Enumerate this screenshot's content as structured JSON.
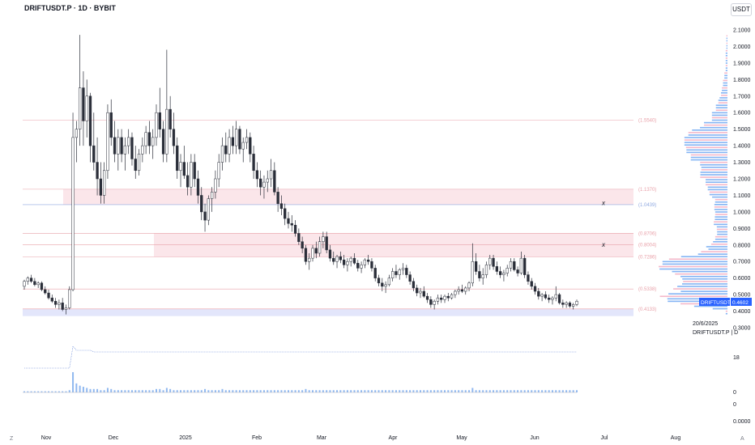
{
  "header": {
    "title": "DRIFTUSDT.P · 1D · BYBIT",
    "currency_label": "USDT"
  },
  "colors": {
    "candle": "#2a2e39",
    "level_red": "#e8a0a8",
    "level_blue": "#8fa8e0",
    "zone_red": "#fbe6ea",
    "zone_blue": "#e3e6fb",
    "profile": "#5b9bf0",
    "price_tag": "#2962ff"
  },
  "chart_data": {
    "type": "candlestick",
    "symbol": "DRIFTUSDT.P",
    "timeframe": "1D",
    "exchange": "BYBIT",
    "y_ticks": [
      "2.1000",
      "2.0000",
      "1.9000",
      "1.8000",
      "1.7000",
      "1.6000",
      "1.5000",
      "1.4000",
      "1.3000",
      "1.2000",
      "1.1000",
      "1.0000",
      "0.9000",
      "0.8000",
      "0.7000",
      "0.6000",
      "0.5000",
      "0.4000",
      "0.3000"
    ],
    "ylim": [
      0.3,
      2.1
    ],
    "x_ticks": [
      "Nov",
      "Dec",
      "2025",
      "Feb",
      "Mar",
      "Apr",
      "May",
      "Jun",
      "Jul",
      "Aug"
    ],
    "levels": [
      {
        "label": "(1.5540)",
        "value": 1.554,
        "color": "red"
      },
      {
        "label": "(1.1370)",
        "value": 1.137,
        "color": "red"
      },
      {
        "label": "(1.0439)",
        "value": 1.0439,
        "color": "blue"
      },
      {
        "label": "(0.8706)",
        "value": 0.8706,
        "color": "red"
      },
      {
        "label": "(0.8004)",
        "value": 0.8004,
        "color": "red"
      },
      {
        "label": "(0.7286)",
        "value": 0.7286,
        "color": "red"
      },
      {
        "label": "(0.5338)",
        "value": 0.5338,
        "color": "red"
      },
      {
        "label": "(0.4133)",
        "value": 0.4133,
        "color": "red"
      }
    ],
    "zones": [
      {
        "from": 1.044,
        "to": 1.137,
        "color": "red"
      },
      {
        "from": 0.7286,
        "to": 0.8706,
        "color": "red"
      },
      {
        "from": 0.37,
        "to": 0.4133,
        "color": "blue"
      }
    ],
    "markers": [
      {
        "text": "x",
        "value": 1.05
      },
      {
        "text": "x",
        "value": 0.8
      }
    ],
    "last_price": {
      "symbol": "DRIFTUSDT.P",
      "value": "0.4602"
    },
    "info": {
      "date": "20/6/2025",
      "line": "DRIFTUSDT.P | D"
    },
    "indicator_labels": [
      "18",
      "0",
      "0",
      "0.0000"
    ],
    "candles": [
      [
        0.55,
        0.59,
        0.53,
        0.58
      ],
      [
        0.58,
        0.61,
        0.56,
        0.6
      ],
      [
        0.6,
        0.62,
        0.57,
        0.58
      ],
      [
        0.58,
        0.6,
        0.55,
        0.56
      ],
      [
        0.56,
        0.58,
        0.54,
        0.57
      ],
      [
        0.57,
        0.58,
        0.52,
        0.53
      ],
      [
        0.53,
        0.55,
        0.5,
        0.51
      ],
      [
        0.51,
        0.53,
        0.47,
        0.48
      ],
      [
        0.48,
        0.5,
        0.45,
        0.46
      ],
      [
        0.46,
        0.48,
        0.42,
        0.44
      ],
      [
        0.44,
        0.47,
        0.41,
        0.45
      ],
      [
        0.45,
        0.48,
        0.4,
        0.41
      ],
      [
        0.41,
        0.44,
        0.38,
        0.42
      ],
      [
        0.42,
        0.55,
        0.41,
        0.53
      ],
      [
        0.53,
        1.6,
        0.52,
        1.45
      ],
      [
        1.45,
        1.55,
        1.3,
        1.5
      ],
      [
        1.5,
        2.07,
        1.4,
        1.75
      ],
      [
        1.75,
        1.85,
        1.4,
        1.55
      ],
      [
        1.55,
        1.8,
        1.45,
        1.7
      ],
      [
        1.7,
        1.72,
        1.3,
        1.4
      ],
      [
        1.4,
        1.6,
        1.25,
        1.3
      ],
      [
        1.3,
        1.45,
        1.1,
        1.2
      ],
      [
        1.2,
        1.3,
        1.05,
        1.1
      ],
      [
        1.1,
        1.3,
        1.05,
        1.25
      ],
      [
        1.25,
        1.65,
        1.2,
        1.6
      ],
      [
        1.6,
        1.68,
        1.4,
        1.45
      ],
      [
        1.45,
        1.55,
        1.3,
        1.35
      ],
      [
        1.35,
        1.5,
        1.25,
        1.45
      ],
      [
        1.45,
        1.5,
        1.3,
        1.35
      ],
      [
        1.35,
        1.45,
        1.25,
        1.4
      ],
      [
        1.4,
        1.5,
        1.35,
        1.45
      ],
      [
        1.45,
        1.48,
        1.28,
        1.32
      ],
      [
        1.32,
        1.4,
        1.2,
        1.25
      ],
      [
        1.25,
        1.38,
        1.22,
        1.35
      ],
      [
        1.35,
        1.45,
        1.3,
        1.4
      ],
      [
        1.4,
        1.52,
        1.35,
        1.48
      ],
      [
        1.48,
        1.55,
        1.35,
        1.4
      ],
      [
        1.4,
        1.5,
        1.32,
        1.45
      ],
      [
        1.45,
        1.65,
        1.4,
        1.6
      ],
      [
        1.6,
        1.75,
        1.45,
        1.5
      ],
      [
        1.5,
        1.55,
        1.3,
        1.35
      ],
      [
        1.35,
        1.98,
        1.3,
        1.62
      ],
      [
        1.62,
        1.7,
        1.45,
        1.5
      ],
      [
        1.5,
        1.6,
        1.35,
        1.4
      ],
      [
        1.4,
        1.45,
        1.2,
        1.25
      ],
      [
        1.25,
        1.35,
        1.15,
        1.3
      ],
      [
        1.3,
        1.4,
        1.2,
        1.22
      ],
      [
        1.22,
        1.3,
        1.1,
        1.15
      ],
      [
        1.15,
        1.35,
        1.1,
        1.3
      ],
      [
        1.3,
        1.35,
        1.15,
        1.2
      ],
      [
        1.2,
        1.25,
        1.05,
        1.1
      ],
      [
        1.1,
        1.15,
        0.95,
        1.0
      ],
      [
        1.0,
        1.05,
        0.88,
        0.95
      ],
      [
        0.95,
        1.1,
        0.92,
        1.08
      ],
      [
        1.08,
        1.15,
        1.0,
        1.12
      ],
      [
        1.12,
        1.25,
        1.08,
        1.2
      ],
      [
        1.2,
        1.35,
        1.15,
        1.3
      ],
      [
        1.3,
        1.45,
        1.25,
        1.4
      ],
      [
        1.4,
        1.48,
        1.3,
        1.35
      ],
      [
        1.35,
        1.5,
        1.3,
        1.45
      ],
      [
        1.45,
        1.52,
        1.35,
        1.4
      ],
      [
        1.4,
        1.55,
        1.35,
        1.5
      ],
      [
        1.5,
        1.52,
        1.35,
        1.38
      ],
      [
        1.38,
        1.45,
        1.3,
        1.42
      ],
      [
        1.42,
        1.5,
        1.38,
        1.45
      ],
      [
        1.45,
        1.48,
        1.3,
        1.35
      ],
      [
        1.35,
        1.4,
        1.2,
        1.25
      ],
      [
        1.25,
        1.3,
        1.15,
        1.2
      ],
      [
        1.2,
        1.25,
        1.1,
        1.15
      ],
      [
        1.15,
        1.22,
        1.08,
        1.18
      ],
      [
        1.18,
        1.25,
        1.12,
        1.2
      ],
      [
        1.2,
        1.32,
        1.15,
        1.25
      ],
      [
        1.25,
        1.3,
        1.1,
        1.12
      ],
      [
        1.12,
        1.15,
        1.0,
        1.05
      ],
      [
        1.05,
        1.1,
        0.98,
        1.02
      ],
      [
        1.02,
        1.05,
        0.92,
        0.96
      ],
      [
        0.96,
        1.0,
        0.9,
        0.93
      ],
      [
        0.93,
        0.98,
        0.88,
        0.92
      ],
      [
        0.92,
        0.95,
        0.85,
        0.87
      ],
      [
        0.87,
        0.9,
        0.8,
        0.82
      ],
      [
        0.82,
        0.85,
        0.75,
        0.78
      ],
      [
        0.78,
        0.8,
        0.68,
        0.7
      ],
      [
        0.7,
        0.75,
        0.65,
        0.72
      ],
      [
        0.72,
        0.8,
        0.7,
        0.78
      ],
      [
        0.78,
        0.82,
        0.72,
        0.75
      ],
      [
        0.75,
        0.85,
        0.73,
        0.82
      ],
      [
        0.82,
        0.88,
        0.78,
        0.85
      ],
      [
        0.85,
        0.88,
        0.75,
        0.77
      ],
      [
        0.77,
        0.8,
        0.7,
        0.72
      ],
      [
        0.72,
        0.76,
        0.68,
        0.7
      ],
      [
        0.7,
        0.74,
        0.66,
        0.73
      ],
      [
        0.73,
        0.76,
        0.69,
        0.71
      ],
      [
        0.71,
        0.74,
        0.66,
        0.68
      ],
      [
        0.68,
        0.72,
        0.64,
        0.7
      ],
      [
        0.7,
        0.73,
        0.67,
        0.72
      ],
      [
        0.72,
        0.75,
        0.68,
        0.69
      ],
      [
        0.69,
        0.71,
        0.64,
        0.66
      ],
      [
        0.66,
        0.7,
        0.63,
        0.68
      ],
      [
        0.68,
        0.72,
        0.66,
        0.71
      ],
      [
        0.71,
        0.74,
        0.68,
        0.7
      ],
      [
        0.7,
        0.72,
        0.64,
        0.66
      ],
      [
        0.66,
        0.68,
        0.58,
        0.6
      ],
      [
        0.6,
        0.62,
        0.55,
        0.57
      ],
      [
        0.57,
        0.6,
        0.52,
        0.55
      ],
      [
        0.55,
        0.58,
        0.51,
        0.56
      ],
      [
        0.56,
        0.62,
        0.55,
        0.6
      ],
      [
        0.6,
        0.66,
        0.58,
        0.64
      ],
      [
        0.64,
        0.68,
        0.6,
        0.62
      ],
      [
        0.62,
        0.66,
        0.59,
        0.65
      ],
      [
        0.65,
        0.69,
        0.62,
        0.66
      ],
      [
        0.66,
        0.68,
        0.6,
        0.62
      ],
      [
        0.62,
        0.64,
        0.56,
        0.58
      ],
      [
        0.58,
        0.6,
        0.52,
        0.54
      ],
      [
        0.54,
        0.56,
        0.49,
        0.51
      ],
      [
        0.51,
        0.54,
        0.48,
        0.52
      ],
      [
        0.52,
        0.55,
        0.48,
        0.49
      ],
      [
        0.49,
        0.51,
        0.45,
        0.47
      ],
      [
        0.47,
        0.49,
        0.42,
        0.44
      ],
      [
        0.44,
        0.47,
        0.41,
        0.46
      ],
      [
        0.46,
        0.5,
        0.44,
        0.48
      ],
      [
        0.48,
        0.5,
        0.45,
        0.47
      ],
      [
        0.47,
        0.5,
        0.45,
        0.49
      ],
      [
        0.49,
        0.51,
        0.46,
        0.48
      ],
      [
        0.48,
        0.51,
        0.47,
        0.5
      ],
      [
        0.5,
        0.53,
        0.48,
        0.52
      ],
      [
        0.52,
        0.55,
        0.5,
        0.53
      ],
      [
        0.53,
        0.56,
        0.51,
        0.52
      ],
      [
        0.52,
        0.55,
        0.5,
        0.54
      ],
      [
        0.54,
        0.58,
        0.52,
        0.57
      ],
      [
        0.57,
        0.81,
        0.55,
        0.7
      ],
      [
        0.7,
        0.75,
        0.62,
        0.64
      ],
      [
        0.64,
        0.68,
        0.58,
        0.6
      ],
      [
        0.6,
        0.66,
        0.56,
        0.62
      ],
      [
        0.62,
        0.7,
        0.6,
        0.68
      ],
      [
        0.68,
        0.74,
        0.65,
        0.72
      ],
      [
        0.72,
        0.74,
        0.65,
        0.67
      ],
      [
        0.67,
        0.7,
        0.62,
        0.64
      ],
      [
        0.64,
        0.67,
        0.6,
        0.62
      ],
      [
        0.62,
        0.65,
        0.58,
        0.63
      ],
      [
        0.63,
        0.68,
        0.61,
        0.66
      ],
      [
        0.66,
        0.72,
        0.64,
        0.7
      ],
      [
        0.7,
        0.72,
        0.64,
        0.65
      ],
      [
        0.65,
        0.67,
        0.61,
        0.63
      ],
      [
        0.63,
        0.76,
        0.62,
        0.72
      ],
      [
        0.72,
        0.74,
        0.6,
        0.62
      ],
      [
        0.62,
        0.64,
        0.56,
        0.58
      ],
      [
        0.58,
        0.6,
        0.53,
        0.55
      ],
      [
        0.55,
        0.57,
        0.5,
        0.52
      ],
      [
        0.52,
        0.54,
        0.47,
        0.49
      ],
      [
        0.49,
        0.51,
        0.46,
        0.5
      ],
      [
        0.5,
        0.52,
        0.47,
        0.48
      ],
      [
        0.48,
        0.5,
        0.45,
        0.47
      ],
      [
        0.47,
        0.49,
        0.44,
        0.48
      ],
      [
        0.48,
        0.55,
        0.46,
        0.5
      ],
      [
        0.5,
        0.51,
        0.44,
        0.45
      ],
      [
        0.45,
        0.47,
        0.42,
        0.44
      ],
      [
        0.44,
        0.46,
        0.42,
        0.45
      ],
      [
        0.45,
        0.46,
        0.42,
        0.43
      ],
      [
        0.43,
        0.45,
        0.41,
        0.44
      ],
      [
        0.44,
        0.47,
        0.43,
        0.46
      ]
    ],
    "volume": [
      1,
      1,
      1,
      1,
      1,
      1,
      1,
      1,
      1,
      1,
      1,
      1,
      1,
      2,
      18,
      8,
      6,
      5,
      4,
      3,
      3,
      3,
      2,
      2,
      4,
      3,
      2,
      2,
      2,
      2,
      2,
      2,
      2,
      2,
      2,
      2,
      2,
      2,
      3,
      3,
      2,
      4,
      3,
      2,
      2,
      2,
      2,
      2,
      2,
      2,
      2,
      2,
      3,
      2,
      2,
      2,
      2,
      3,
      2,
      2,
      2,
      2,
      2,
      2,
      2,
      2,
      2,
      2,
      2,
      2,
      2,
      2,
      2,
      2,
      2,
      2,
      2,
      2,
      2,
      2,
      2,
      3,
      2,
      2,
      2,
      2,
      2,
      2,
      2,
      2,
      2,
      2,
      2,
      2,
      2,
      2,
      2,
      2,
      2,
      2,
      2,
      2,
      2,
      2,
      2,
      2,
      2,
      2,
      2,
      2,
      2,
      2,
      2,
      2,
      2,
      2,
      2,
      2,
      2,
      2,
      2,
      2,
      2,
      2,
      2,
      2,
      2,
      2,
      2,
      4,
      2,
      2,
      2,
      2,
      2,
      2,
      2,
      2,
      2,
      2,
      2,
      2,
      2,
      2,
      2,
      2,
      2,
      2,
      2,
      2,
      2,
      2,
      2,
      2,
      2,
      2,
      2,
      2,
      2,
      2
    ]
  }
}
